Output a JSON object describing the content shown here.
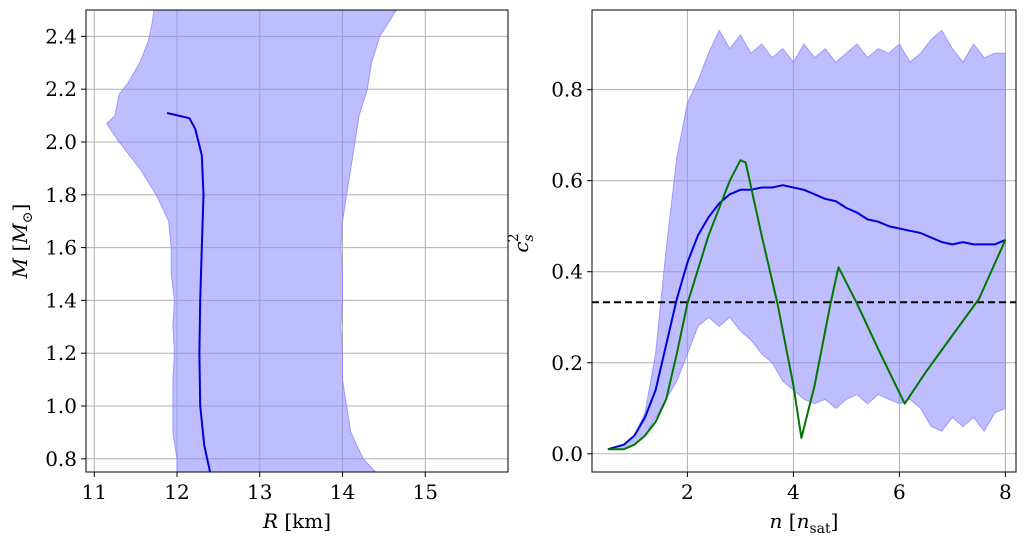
{
  "chart_data": [
    {
      "type": "area",
      "id": "mr",
      "xlabel": "R [km]",
      "ylabel": "M [M_⊙]",
      "xlim": [
        10.9,
        16.0
      ],
      "ylim": [
        0.75,
        2.5
      ],
      "xticks": [
        11,
        12,
        13,
        14,
        15
      ],
      "yticks": [
        0.8,
        1.0,
        1.2,
        1.4,
        1.6,
        1.8,
        2.0,
        2.2,
        2.4
      ],
      "xtick_labels": [
        "11",
        "12",
        "13",
        "14",
        "15"
      ],
      "ytick_labels": [
        "0.8",
        "1.0",
        "1.2",
        "1.4",
        "1.6",
        "1.8",
        "2.0",
        "2.2",
        "2.4"
      ],
      "grid": true,
      "band": {
        "color": "#8888ff",
        "opacity": 0.55,
        "lower": [
          [
            12.0,
            0.75
          ],
          [
            12.0,
            0.8
          ],
          [
            11.95,
            0.9
          ],
          [
            11.95,
            1.0
          ],
          [
            11.95,
            1.1
          ],
          [
            11.97,
            1.2
          ],
          [
            11.95,
            1.3
          ],
          [
            11.97,
            1.4
          ],
          [
            11.93,
            1.5
          ],
          [
            11.93,
            1.6
          ],
          [
            11.9,
            1.7
          ],
          [
            11.75,
            1.8
          ],
          [
            11.55,
            1.9
          ],
          [
            11.4,
            1.96
          ],
          [
            11.28,
            2.01
          ],
          [
            11.15,
            2.07
          ],
          [
            11.25,
            2.1
          ],
          [
            11.3,
            2.18
          ],
          [
            11.4,
            2.22
          ],
          [
            11.55,
            2.3
          ],
          [
            11.65,
            2.38
          ],
          [
            11.7,
            2.45
          ],
          [
            11.72,
            2.5
          ]
        ],
        "upper": [
          [
            14.4,
            0.75
          ],
          [
            14.25,
            0.8
          ],
          [
            14.1,
            0.9
          ],
          [
            14.05,
            1.0
          ],
          [
            14.0,
            1.1
          ],
          [
            14.0,
            1.2
          ],
          [
            13.98,
            1.3
          ],
          [
            14.0,
            1.4
          ],
          [
            14.0,
            1.5
          ],
          [
            13.98,
            1.6
          ],
          [
            14.0,
            1.7
          ],
          [
            14.05,
            1.8
          ],
          [
            14.1,
            1.9
          ],
          [
            14.15,
            2.0
          ],
          [
            14.2,
            2.1
          ],
          [
            14.3,
            2.2
          ],
          [
            14.35,
            2.3
          ],
          [
            14.45,
            2.4
          ],
          [
            14.55,
            2.45
          ],
          [
            14.65,
            2.5
          ]
        ]
      },
      "series": [
        {
          "color": "#0000dd",
          "points": [
            [
              12.4,
              0.75
            ],
            [
              12.33,
              0.85
            ],
            [
              12.28,
              1.0
            ],
            [
              12.27,
              1.2
            ],
            [
              12.28,
              1.4
            ],
            [
              12.3,
              1.6
            ],
            [
              12.32,
              1.8
            ],
            [
              12.3,
              1.95
            ],
            [
              12.22,
              2.05
            ],
            [
              12.15,
              2.09
            ],
            [
              11.88,
              2.11
            ]
          ]
        }
      ]
    },
    {
      "type": "area",
      "id": "cs2",
      "xlabel": "n [n_sat]",
      "ylabel": "c_s^2",
      "xlim": [
        0.2,
        8.2
      ],
      "ylim": [
        -0.04,
        0.975
      ],
      "xticks": [
        2,
        4,
        6,
        8
      ],
      "yticks": [
        0.0,
        0.2,
        0.4,
        0.6,
        0.8
      ],
      "xtick_labels": [
        "2",
        "4",
        "6",
        "8"
      ],
      "ytick_labels": [
        "0.0",
        "0.2",
        "0.4",
        "0.6",
        "0.8"
      ],
      "grid": true,
      "reference_line": {
        "y": 0.333,
        "style": "dashed",
        "color": "#000000"
      },
      "band": {
        "color": "#8888ff",
        "opacity": 0.55,
        "lower": [
          [
            0.5,
            0.01
          ],
          [
            0.8,
            0.01
          ],
          [
            1.0,
            0.02
          ],
          [
            1.2,
            0.04
          ],
          [
            1.4,
            0.08
          ],
          [
            1.6,
            0.12
          ],
          [
            1.8,
            0.16
          ],
          [
            2.0,
            0.22
          ],
          [
            2.2,
            0.28
          ],
          [
            2.4,
            0.3
          ],
          [
            2.6,
            0.28
          ],
          [
            2.8,
            0.3
          ],
          [
            3.0,
            0.27
          ],
          [
            3.2,
            0.25
          ],
          [
            3.4,
            0.22
          ],
          [
            3.6,
            0.2
          ],
          [
            3.8,
            0.16
          ],
          [
            4.0,
            0.14
          ],
          [
            4.2,
            0.12
          ],
          [
            4.4,
            0.11
          ],
          [
            4.6,
            0.12
          ],
          [
            4.8,
            0.1
          ],
          [
            5.0,
            0.12
          ],
          [
            5.2,
            0.13
          ],
          [
            5.4,
            0.11
          ],
          [
            5.6,
            0.13
          ],
          [
            5.8,
            0.12
          ],
          [
            6.0,
            0.11
          ],
          [
            6.2,
            0.12
          ],
          [
            6.4,
            0.1
          ],
          [
            6.6,
            0.06
          ],
          [
            6.8,
            0.05
          ],
          [
            7.0,
            0.08
          ],
          [
            7.2,
            0.06
          ],
          [
            7.4,
            0.08
          ],
          [
            7.6,
            0.05
          ],
          [
            7.8,
            0.09
          ],
          [
            8.0,
            0.1
          ]
        ],
        "upper": [
          [
            0.5,
            0.01
          ],
          [
            0.8,
            0.02
          ],
          [
            1.0,
            0.04
          ],
          [
            1.2,
            0.09
          ],
          [
            1.4,
            0.22
          ],
          [
            1.6,
            0.45
          ],
          [
            1.8,
            0.65
          ],
          [
            2.0,
            0.77
          ],
          [
            2.2,
            0.82
          ],
          [
            2.4,
            0.88
          ],
          [
            2.6,
            0.93
          ],
          [
            2.8,
            0.89
          ],
          [
            3.0,
            0.92
          ],
          [
            3.2,
            0.88
          ],
          [
            3.4,
            0.9
          ],
          [
            3.6,
            0.87
          ],
          [
            3.8,
            0.89
          ],
          [
            4.0,
            0.86
          ],
          [
            4.2,
            0.9
          ],
          [
            4.4,
            0.87
          ],
          [
            4.6,
            0.89
          ],
          [
            4.8,
            0.86
          ],
          [
            5.0,
            0.88
          ],
          [
            5.2,
            0.9
          ],
          [
            5.4,
            0.87
          ],
          [
            5.6,
            0.89
          ],
          [
            5.8,
            0.88
          ],
          [
            6.0,
            0.9
          ],
          [
            6.2,
            0.86
          ],
          [
            6.4,
            0.88
          ],
          [
            6.6,
            0.91
          ],
          [
            6.8,
            0.93
          ],
          [
            7.0,
            0.89
          ],
          [
            7.2,
            0.86
          ],
          [
            7.4,
            0.9
          ],
          [
            7.6,
            0.87
          ],
          [
            7.8,
            0.88
          ],
          [
            8.0,
            0.88
          ]
        ]
      },
      "series": [
        {
          "color": "#0000dd",
          "points": [
            [
              0.5,
              0.01
            ],
            [
              0.8,
              0.02
            ],
            [
              1.0,
              0.04
            ],
            [
              1.2,
              0.08
            ],
            [
              1.4,
              0.14
            ],
            [
              1.6,
              0.24
            ],
            [
              1.8,
              0.34
            ],
            [
              2.0,
              0.42
            ],
            [
              2.2,
              0.48
            ],
            [
              2.4,
              0.52
            ],
            [
              2.6,
              0.55
            ],
            [
              2.8,
              0.57
            ],
            [
              3.0,
              0.58
            ],
            [
              3.2,
              0.58
            ],
            [
              3.4,
              0.585
            ],
            [
              3.6,
              0.585
            ],
            [
              3.8,
              0.59
            ],
            [
              4.0,
              0.585
            ],
            [
              4.2,
              0.58
            ],
            [
              4.4,
              0.57
            ],
            [
              4.6,
              0.56
            ],
            [
              4.8,
              0.555
            ],
            [
              5.0,
              0.54
            ],
            [
              5.2,
              0.53
            ],
            [
              5.4,
              0.515
            ],
            [
              5.6,
              0.51
            ],
            [
              5.8,
              0.5
            ],
            [
              6.0,
              0.495
            ],
            [
              6.2,
              0.49
            ],
            [
              6.4,
              0.485
            ],
            [
              6.6,
              0.475
            ],
            [
              6.8,
              0.465
            ],
            [
              7.0,
              0.46
            ],
            [
              7.2,
              0.465
            ],
            [
              7.4,
              0.46
            ],
            [
              7.6,
              0.46
            ],
            [
              7.8,
              0.46
            ],
            [
              8.0,
              0.47
            ]
          ]
        },
        {
          "color": "#007700",
          "points": [
            [
              0.5,
              0.01
            ],
            [
              0.8,
              0.01
            ],
            [
              1.0,
              0.02
            ],
            [
              1.2,
              0.04
            ],
            [
              1.4,
              0.07
            ],
            [
              1.6,
              0.12
            ],
            [
              1.8,
              0.22
            ],
            [
              2.0,
              0.33
            ],
            [
              2.4,
              0.48
            ],
            [
              2.8,
              0.6
            ],
            [
              3.0,
              0.645
            ],
            [
              3.1,
              0.64
            ],
            [
              3.4,
              0.48
            ],
            [
              3.7,
              0.33
            ],
            [
              4.0,
              0.15
            ],
            [
              4.15,
              0.035
            ],
            [
              4.4,
              0.15
            ],
            [
              4.7,
              0.33
            ],
            [
              4.85,
              0.41
            ],
            [
              5.2,
              0.33
            ],
            [
              5.6,
              0.23
            ],
            [
              6.1,
              0.11
            ],
            [
              6.5,
              0.18
            ],
            [
              7.0,
              0.26
            ],
            [
              7.5,
              0.34
            ],
            [
              8.0,
              0.47
            ]
          ]
        }
      ]
    }
  ]
}
